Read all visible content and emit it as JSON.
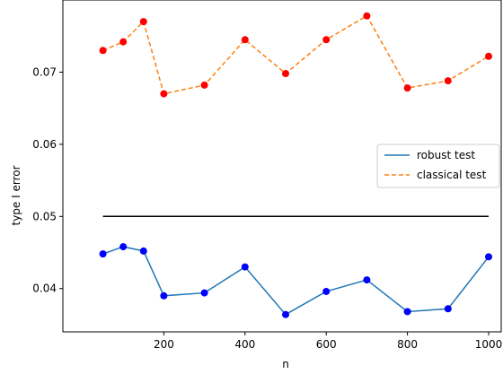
{
  "chart_data": {
    "type": "line",
    "xlabel": "n",
    "ylabel": "type I error",
    "xlim": [
      0,
      1000
    ],
    "ylim": [
      0.034,
      0.08
    ],
    "xticks": [
      200,
      400,
      600,
      800,
      1000
    ],
    "yticks": [
      0.04,
      0.05,
      0.06,
      0.07
    ],
    "x": [
      50,
      100,
      150,
      200,
      300,
      400,
      500,
      600,
      700,
      800,
      900,
      1000
    ],
    "series": [
      {
        "name": "robust test",
        "style": "solid",
        "line_color": "#1f77b4",
        "marker_color": "#0000ff",
        "values": [
          0.0448,
          0.0458,
          0.0452,
          0.039,
          0.0394,
          0.043,
          0.0364,
          0.0396,
          0.0412,
          0.0368,
          0.0372,
          0.0444
        ]
      },
      {
        "name": "classical test",
        "style": "dashed",
        "line_color": "#ff7f0e",
        "marker_color": "#ff0000",
        "values": [
          0.073,
          0.0742,
          0.077,
          0.067,
          0.0682,
          0.0745,
          0.0698,
          0.0745,
          0.0778,
          0.0678,
          0.0688,
          0.0722
        ]
      }
    ],
    "reference_line": {
      "y": 0.05,
      "color": "#000000"
    },
    "legend": {
      "position": "center-right"
    },
    "grid": false
  }
}
